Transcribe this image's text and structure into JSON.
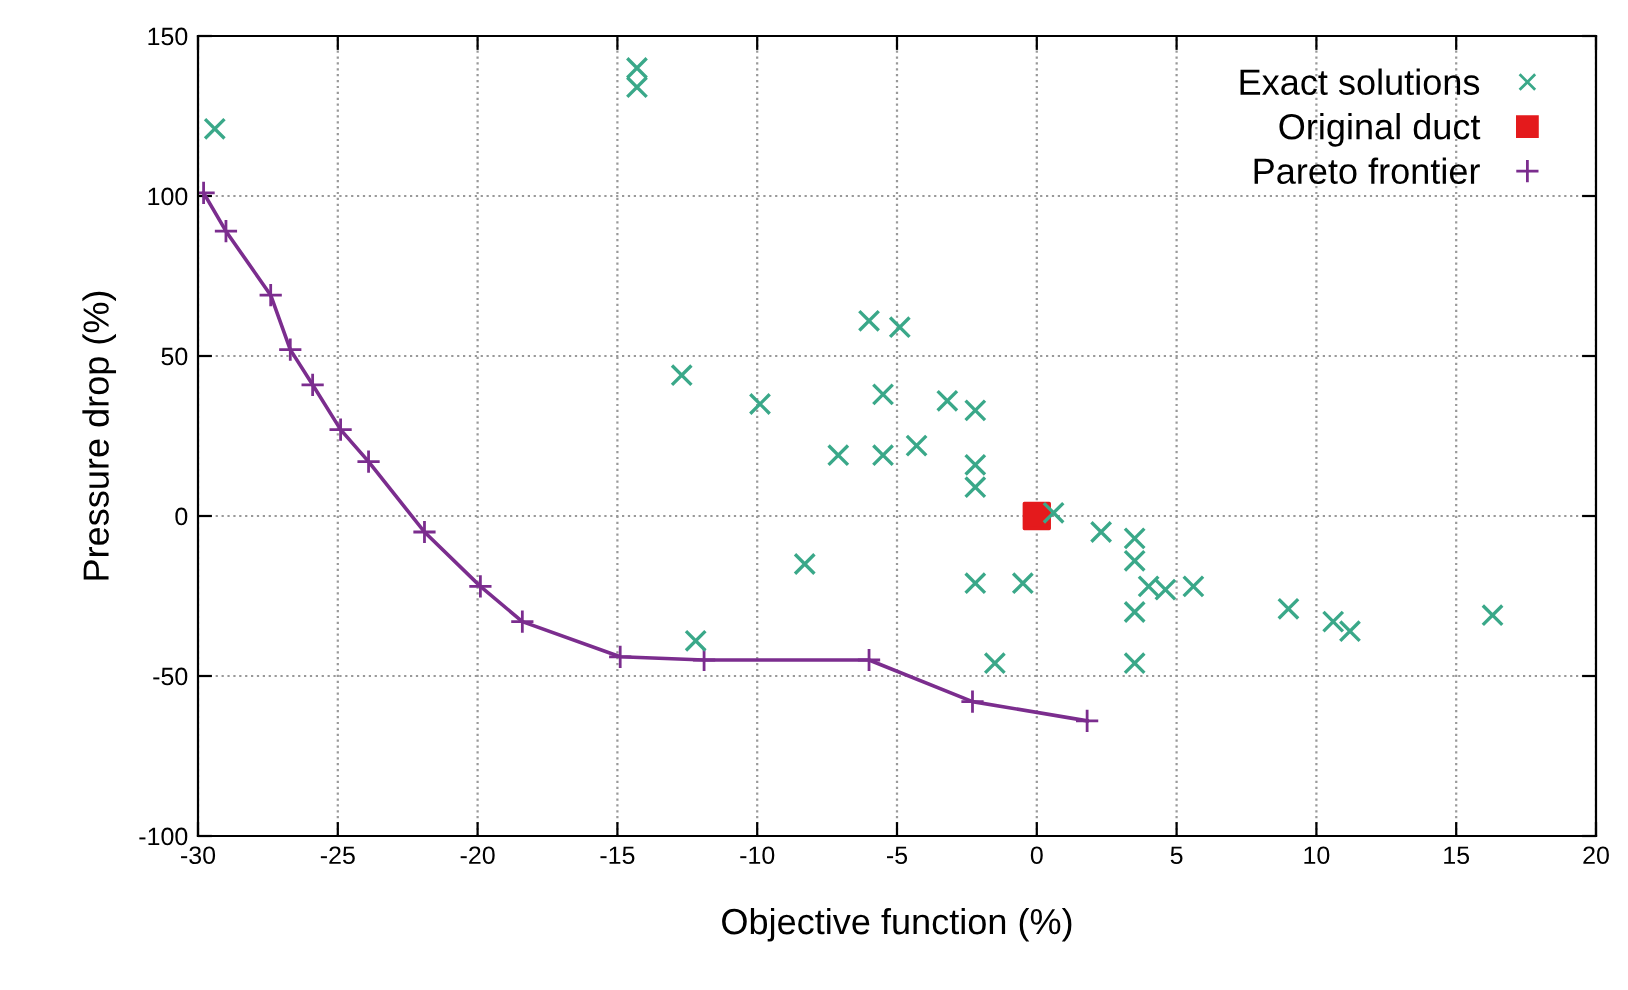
{
  "chart_data": {
    "type": "scatter",
    "xlabel": "Objective function (%)",
    "ylabel": "Pressure drop (%)",
    "xlim": [
      -30,
      20
    ],
    "xticks": [
      -30,
      -25,
      -20,
      -15,
      -10,
      -5,
      0,
      5,
      10,
      15,
      20
    ],
    "ylim": [
      -100,
      150
    ],
    "yticks": [
      -100,
      -50,
      0,
      50,
      100,
      150
    ],
    "grid": true,
    "legend": "top right",
    "series": [
      {
        "name": "Exact solutions",
        "marker": "cross",
        "color": "#3aa889",
        "x": [
          -29.4,
          -14.3,
          -14.3,
          -12.7,
          -9.9,
          -8.3,
          -12.2,
          -6,
          -4.9,
          -5.5,
          -3.2,
          -2.2,
          -7.1,
          -5.5,
          -4.3,
          -2.2,
          -2.2,
          0.6,
          2.3,
          3.5,
          3.5,
          4.0,
          4.6,
          5.6,
          -2.2,
          -0.5,
          3.5,
          9.0,
          10.6,
          11.2,
          16.3,
          -1.5,
          3.5
        ],
        "values": [
          121,
          140,
          134,
          44,
          35,
          -15,
          -39,
          61,
          59,
          38,
          36,
          33,
          19,
          19,
          22,
          16,
          9,
          1,
          -5,
          -7,
          -14,
          -22,
          -23,
          -22,
          -21,
          -21,
          -30,
          -29,
          -33,
          -36,
          -31,
          -46,
          -46
        ]
      },
      {
        "name": "Original duct",
        "marker": "square",
        "color": "#e41a1c",
        "x": [
          0
        ],
        "values": [
          0
        ]
      },
      {
        "name": "Pareto frontier",
        "type": "line",
        "marker": "plus",
        "line_style": "solid",
        "color": "#7b2d8e",
        "x": [
          -29.8,
          -29.0,
          -27.4,
          -26.7,
          -25.9,
          -24.9,
          -23.9,
          -21.9,
          -19.9,
          -18.4,
          -14.9,
          -11.9,
          -6.0,
          -2.3,
          1.8
        ],
        "values": [
          101,
          89,
          69,
          52,
          41,
          27,
          17,
          -5,
          -22,
          -33,
          -44,
          -45,
          -45,
          -58,
          -64
        ]
      }
    ]
  }
}
